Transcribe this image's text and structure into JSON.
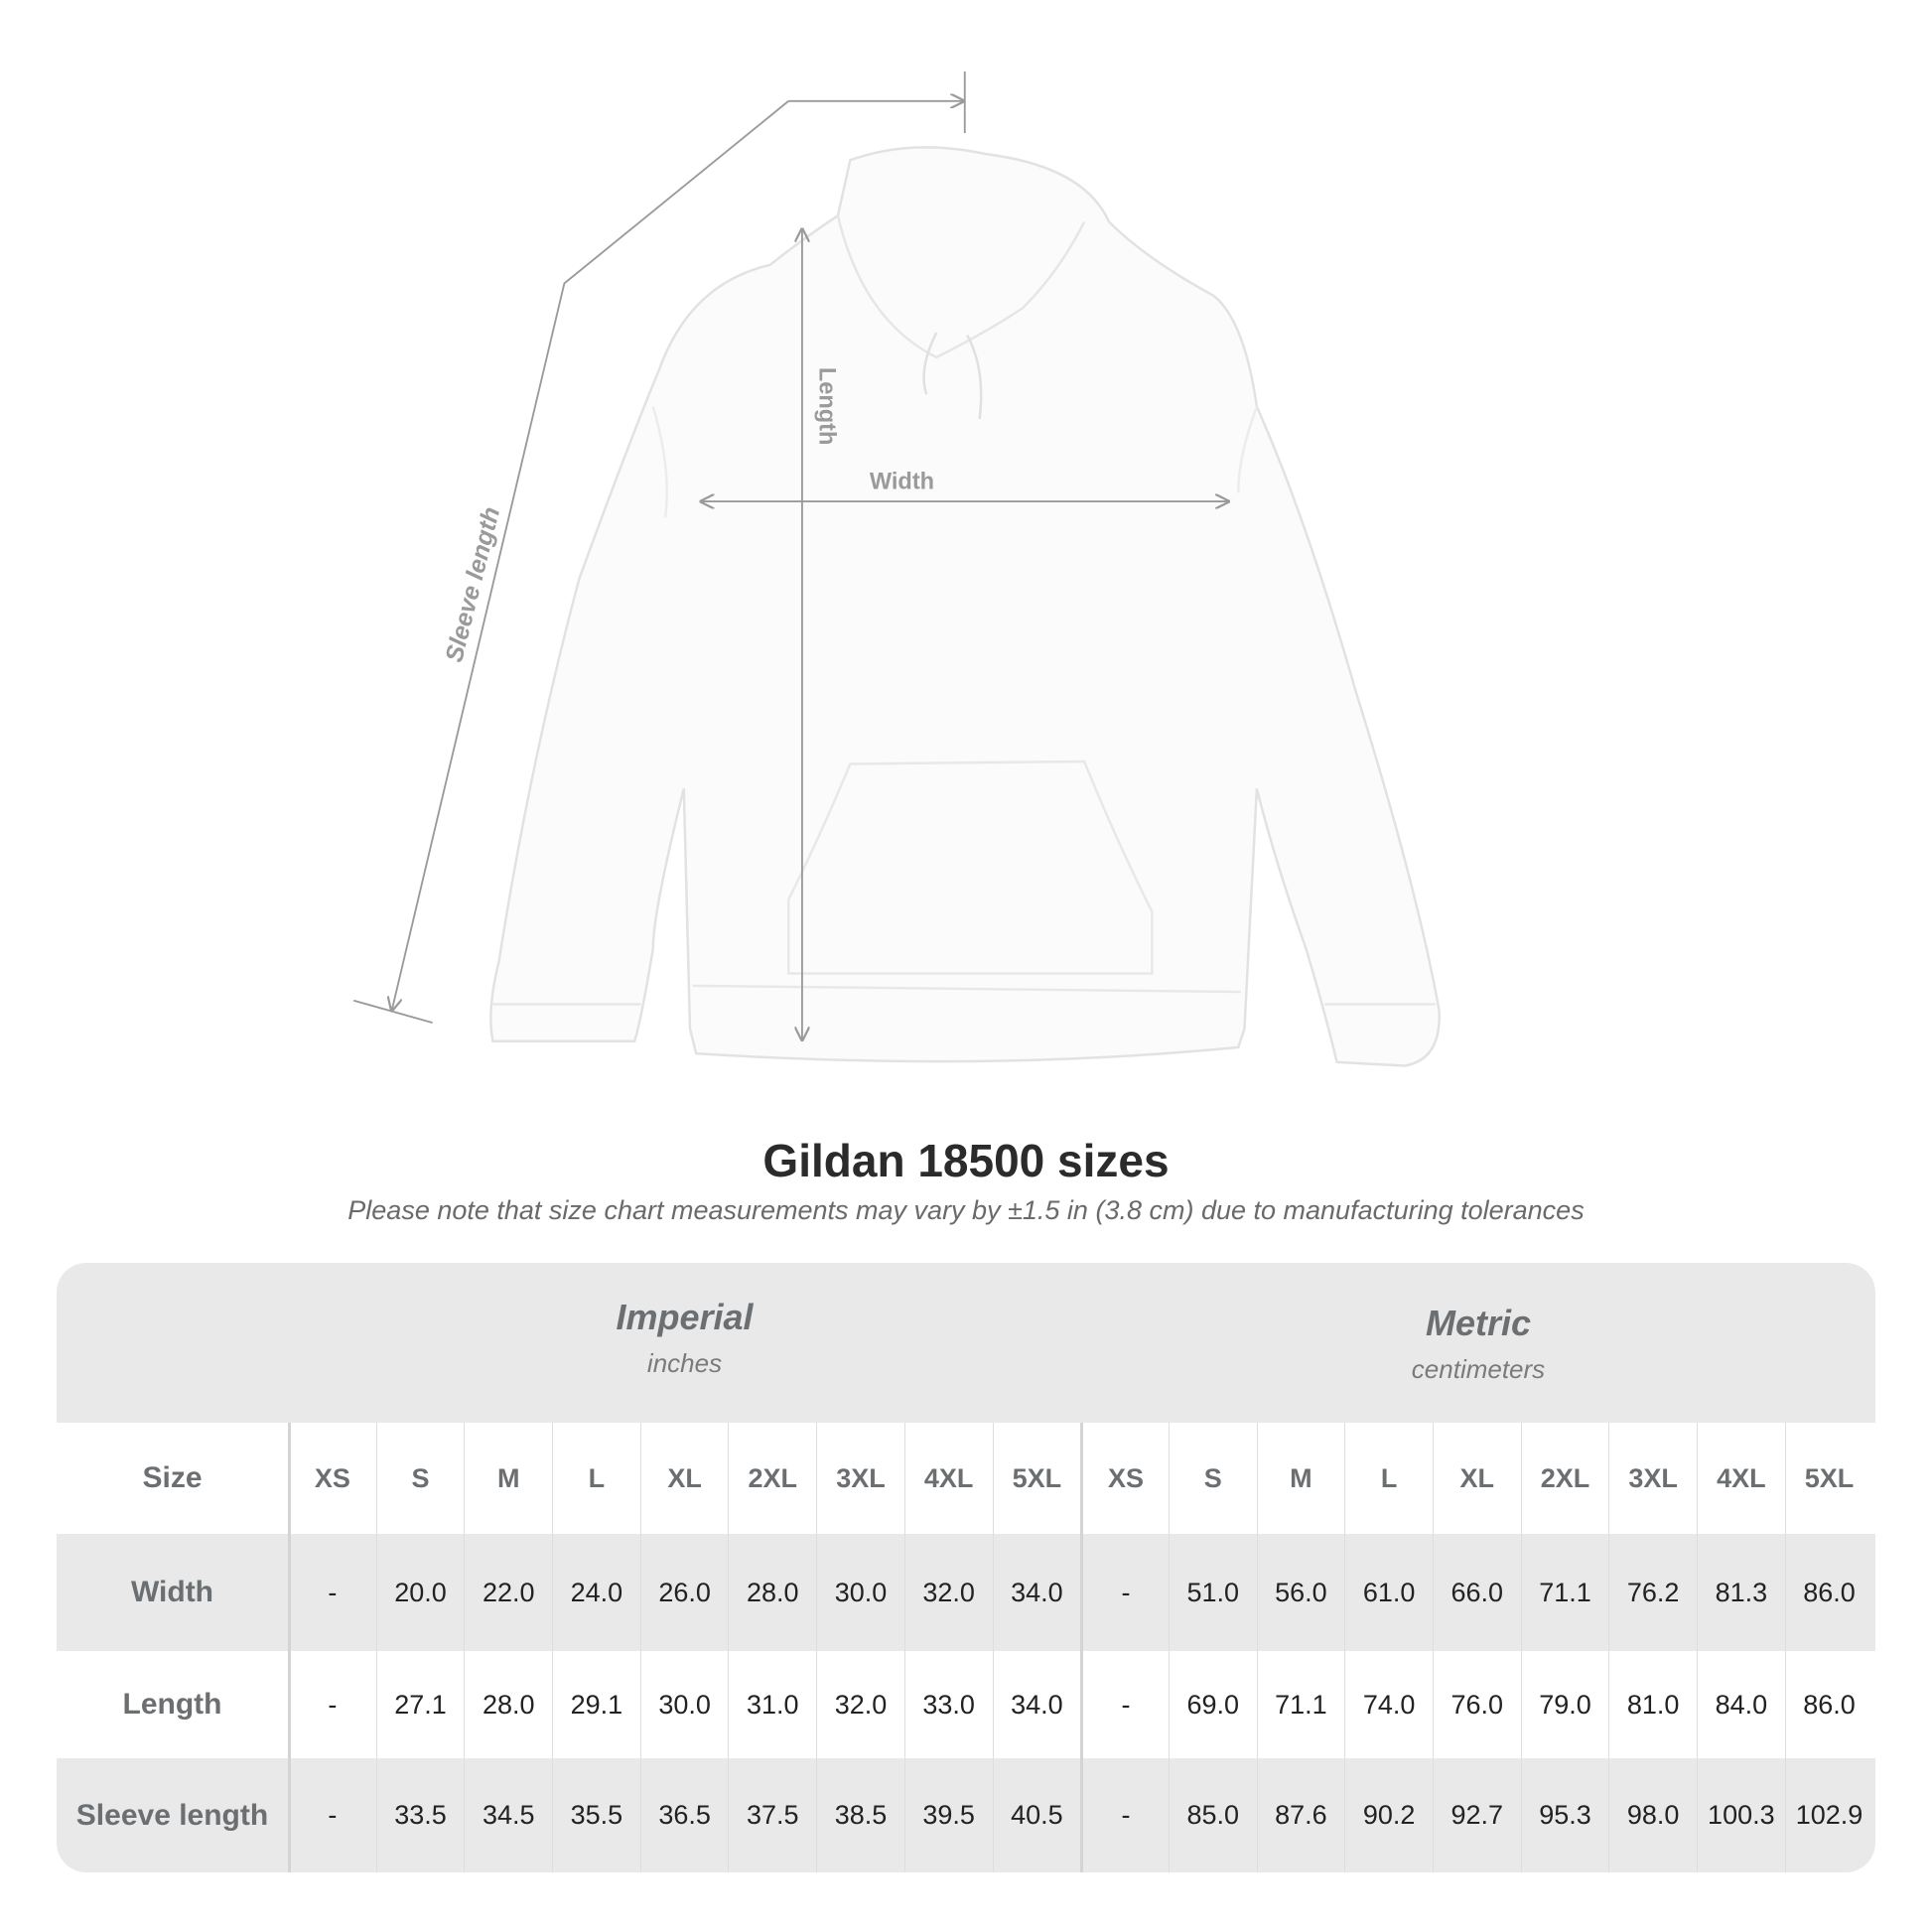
{
  "diagram": {
    "labels": {
      "length": "Length",
      "width": "Width",
      "sleeve_length": "Sleeve length"
    }
  },
  "title": "Gildan 18500 sizes",
  "subtitle": "Please note that size chart measurements may vary by ±1.5 in (3.8 cm) due to manufacturing tolerances",
  "table": {
    "imperial": {
      "name": "Imperial",
      "unit": "inches"
    },
    "metric": {
      "name": "Metric",
      "unit": "centimeters"
    },
    "size_label": "Size",
    "sizes": [
      "XS",
      "S",
      "M",
      "L",
      "XL",
      "2XL",
      "3XL",
      "4XL",
      "5XL",
      "XS",
      "S",
      "M",
      "L",
      "XL",
      "2XL",
      "3XL",
      "4XL",
      "5XL"
    ],
    "rows": [
      {
        "label": "Width",
        "values": [
          "-",
          "20.0",
          "22.0",
          "24.0",
          "26.0",
          "28.0",
          "30.0",
          "32.0",
          "34.0",
          "-",
          "51.0",
          "56.0",
          "61.0",
          "66.0",
          "71.1",
          "76.2",
          "81.3",
          "86.0"
        ]
      },
      {
        "label": "Length",
        "values": [
          "-",
          "27.1",
          "28.0",
          "29.1",
          "30.0",
          "31.0",
          "32.0",
          "33.0",
          "34.0",
          "-",
          "69.0",
          "71.1",
          "74.0",
          "76.0",
          "79.0",
          "81.0",
          "84.0",
          "86.0"
        ]
      },
      {
        "label": "Sleeve length",
        "values": [
          "-",
          "33.5",
          "34.5",
          "35.5",
          "36.5",
          "37.5",
          "38.5",
          "39.5",
          "40.5",
          "-",
          "85.0",
          "87.6",
          "90.2",
          "92.7",
          "95.3",
          "98.0",
          "100.3",
          "102.9"
        ]
      }
    ]
  },
  "colors": {
    "header_bg": "#e9e9e9",
    "label_text": "#6b6f72",
    "measure_line": "#9a9a9a"
  }
}
